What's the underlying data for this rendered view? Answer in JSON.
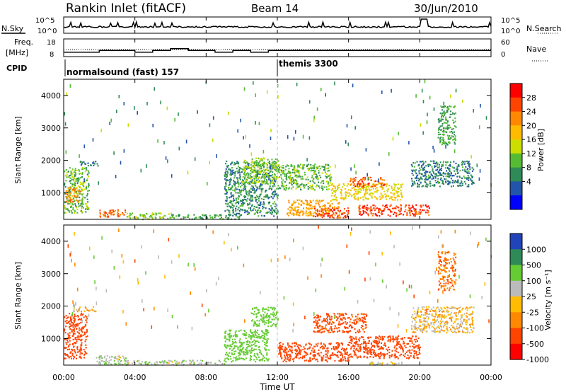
{
  "header": {
    "station": "Rankin Inlet (fitACF)",
    "beam": "Beam 14",
    "date": "30/Jun/2010"
  },
  "strips": {
    "nsky_label": "N.Sky",
    "nsky_ticks": [
      "10^5",
      "10^0"
    ],
    "nsearch_label": "N.Search",
    "nsearch_ticks": [
      "10^5",
      "10^0"
    ],
    "freq_label": "Freq.",
    "freq_unit": "[MHz]",
    "freq_ticks": [
      "18",
      "8"
    ],
    "nave_label": "Nave",
    "nave_ticks": [
      "60",
      "0"
    ],
    "cpid_label": "CPID",
    "cpid_segments": [
      {
        "label": "normalsound (fast) 157",
        "start_hour": 0
      },
      {
        "label": "themis 3300",
        "start_hour": 12
      }
    ]
  },
  "panels": {
    "ylabel": "Slant Range [km]",
    "yticks": [
      "4000",
      "3000",
      "2000",
      "1000"
    ],
    "xlabel": "Time UT",
    "xticks": [
      "00:00",
      "04:00",
      "08:00",
      "12:00",
      "16:00",
      "20:00",
      "00:00"
    ]
  },
  "power_scale": {
    "title": "Power [dB]",
    "ticks": [
      "28",
      "24",
      "20",
      "16",
      "12",
      "8",
      "4"
    ],
    "colors": [
      "#ff0000",
      "#ff4400",
      "#ff8800",
      "#ffbb00",
      "#ccdd00",
      "#55bb33",
      "#2e8b57",
      "#2255aa",
      "#0000ff"
    ]
  },
  "velocity_scale": {
    "title": "Velocity [m s⁻¹]",
    "ticks": [
      "1000",
      "500",
      "100",
      "25",
      "-25",
      "-100",
      "-500",
      "-1000"
    ],
    "colors": [
      "#2244bb",
      "#2e8b57",
      "#66cc33",
      "#bbbbbb",
      "#ffbb00",
      "#ff8800",
      "#ff4400",
      "#ff0000"
    ]
  },
  "chart_data": {
    "type": "heatmap",
    "x_range_hours": [
      0,
      24
    ],
    "y_range_km": [
      180,
      4500
    ],
    "power_regions": [
      {
        "t0": 0.0,
        "t1": 1.4,
        "r0": 400,
        "r1": 1800,
        "power": 12
      },
      {
        "t0": 0.1,
        "t1": 0.9,
        "r0": 700,
        "r1": 1200,
        "power": 24
      },
      {
        "t0": 0.8,
        "t1": 1.9,
        "r0": 1850,
        "r1": 2000,
        "power": 6
      },
      {
        "t0": 2.0,
        "t1": 3.5,
        "r0": 250,
        "r1": 500,
        "power": 26
      },
      {
        "t0": 3.5,
        "t1": 6.0,
        "r0": 200,
        "r1": 400,
        "power": 14
      },
      {
        "t0": 6.0,
        "t1": 10.0,
        "r0": 200,
        "r1": 350,
        "power": 10
      },
      {
        "t0": 9.0,
        "t1": 12.0,
        "r0": 300,
        "r1": 2000,
        "power": 8
      },
      {
        "t0": 10.0,
        "t1": 12.0,
        "r0": 1300,
        "r1": 2100,
        "power": 14
      },
      {
        "t0": 12.0,
        "t1": 15.0,
        "r0": 1100,
        "r1": 1900,
        "power": 12
      },
      {
        "t0": 12.5,
        "t1": 15.5,
        "r0": 300,
        "r1": 800,
        "power": 22
      },
      {
        "t0": 14.0,
        "t1": 16.0,
        "r0": 250,
        "r1": 550,
        "power": 28
      },
      {
        "t0": 15.0,
        "t1": 19.0,
        "r0": 800,
        "r1": 1300,
        "power": 18
      },
      {
        "t0": 16.0,
        "t1": 18.0,
        "r0": 1200,
        "r1": 1500,
        "power": 27
      },
      {
        "t0": 16.5,
        "t1": 20.5,
        "r0": 300,
        "r1": 650,
        "power": 29
      },
      {
        "t0": 19.5,
        "t1": 23.0,
        "r0": 1200,
        "r1": 2000,
        "power": 7
      },
      {
        "t0": 21.0,
        "t1": 22.0,
        "r0": 2500,
        "r1": 3700,
        "power": 10
      }
    ],
    "velocity_regions": [
      {
        "t0": 0.0,
        "t1": 1.3,
        "r0": 400,
        "r1": 1800,
        "velocity": -300
      },
      {
        "t0": 0.5,
        "t1": 1.8,
        "r0": 1850,
        "r1": 2000,
        "velocity": 0
      },
      {
        "t0": 1.8,
        "t1": 3.5,
        "r0": 200,
        "r1": 500,
        "velocity": 80
      },
      {
        "t0": 3.5,
        "t1": 9.0,
        "r0": 200,
        "r1": 350,
        "velocity": 80
      },
      {
        "t0": 9.0,
        "t1": 11.5,
        "r0": 300,
        "r1": 1300,
        "velocity": 300
      },
      {
        "t0": 10.5,
        "t1": 12.0,
        "r0": 1400,
        "r1": 2000,
        "velocity": 200
      },
      {
        "t0": 12.0,
        "t1": 16.0,
        "r0": 300,
        "r1": 900,
        "velocity": -200
      },
      {
        "t0": 14.0,
        "t1": 17.0,
        "r0": 1200,
        "r1": 1800,
        "velocity": -150
      },
      {
        "t0": 16.0,
        "t1": 20.0,
        "r0": 400,
        "r1": 1100,
        "velocity": -180
      },
      {
        "t0": 17.0,
        "t1": 19.0,
        "r0": 200,
        "r1": 300,
        "velocity": 60
      },
      {
        "t0": 19.5,
        "t1": 23.0,
        "r0": 1200,
        "r1": 2000,
        "velocity": 0
      },
      {
        "t0": 21.0,
        "t1": 22.0,
        "r0": 2500,
        "r1": 3700,
        "velocity": -80
      }
    ],
    "freq_steps": [
      {
        "t0": 0.0,
        "t1": 2.0,
        "mhz": 10.5
      },
      {
        "t0": 2.0,
        "t1": 4.0,
        "mhz": 11.5
      },
      {
        "t0": 4.0,
        "t1": 5.0,
        "mhz": 10.5
      },
      {
        "t0": 5.0,
        "t1": 6.0,
        "mhz": 11.5
      },
      {
        "t0": 6.0,
        "t1": 7.0,
        "mhz": 12.5
      },
      {
        "t0": 7.0,
        "t1": 8.5,
        "mhz": 11.5
      },
      {
        "t0": 8.5,
        "t1": 9.5,
        "mhz": 10.5
      },
      {
        "t0": 9.5,
        "t1": 10.5,
        "mhz": 11.5
      },
      {
        "t0": 10.5,
        "t1": 11.5,
        "mhz": 10.5
      },
      {
        "t0": 11.5,
        "t1": 24.0,
        "mhz": 11.5
      }
    ]
  }
}
